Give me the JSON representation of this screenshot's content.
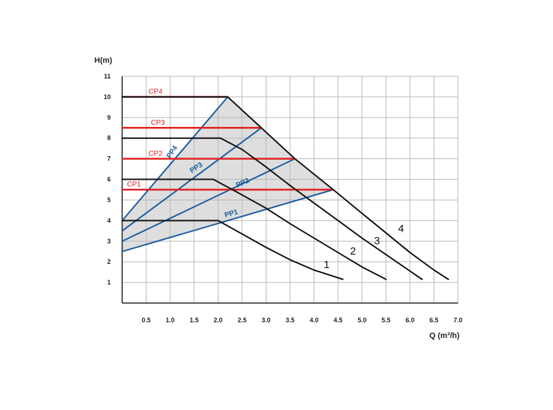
{
  "chart_data": {
    "type": "line",
    "ylabel": "H(m)",
    "xlabel": "Q (m³/h)",
    "xlim": [
      0,
      7.0
    ],
    "ylim": [
      0,
      11
    ],
    "grid": true,
    "x_ticks": [
      "0.5",
      "1.0",
      "1.5",
      "2.0",
      "2.5",
      "3.0",
      "3.5",
      "4.0",
      "4.5",
      "5.0",
      "5.5",
      "6.0",
      "6.5",
      "7.0"
    ],
    "y_ticks": [
      "1",
      "2",
      "3",
      "4",
      "5",
      "6",
      "7",
      "8",
      "9",
      "10",
      "11"
    ],
    "colors": {
      "grid": "#b8b8b8",
      "speed_curve": "#111111",
      "constant_pressure": "#e02020",
      "proportional_pressure": "#1a5c9e",
      "operating_area": "#dedede"
    },
    "operating_area": [
      {
        "x": 0,
        "y": 4.0
      },
      {
        "x": 2.2,
        "y": 10.0
      },
      {
        "x": 2.9,
        "y": 8.5
      },
      {
        "x": 3.6,
        "y": 7.0
      },
      {
        "x": 4.4,
        "y": 5.5
      },
      {
        "x": 2.0,
        "y": 3.9
      },
      {
        "x": 0,
        "y": 2.5
      }
    ],
    "speed_curves": [
      {
        "name": "1",
        "label_at": {
          "x": 4.2,
          "y": 1.7
        },
        "points": [
          {
            "x": 0,
            "y": 4.0
          },
          {
            "x": 2.0,
            "y": 4.0
          },
          {
            "x": 2.5,
            "y": 3.35
          },
          {
            "x": 3.0,
            "y": 2.7
          },
          {
            "x": 3.5,
            "y": 2.1
          },
          {
            "x": 4.0,
            "y": 1.6
          },
          {
            "x": 4.6,
            "y": 1.15
          }
        ]
      },
      {
        "name": "2",
        "label_at": {
          "x": 4.75,
          "y": 2.35
        },
        "points": [
          {
            "x": 0,
            "y": 6.0
          },
          {
            "x": 1.9,
            "y": 6.0
          },
          {
            "x": 2.3,
            "y": 5.5
          },
          {
            "x": 3.0,
            "y": 4.6
          },
          {
            "x": 3.5,
            "y": 3.85
          },
          {
            "x": 4.0,
            "y": 3.15
          },
          {
            "x": 4.5,
            "y": 2.45
          },
          {
            "x": 5.0,
            "y": 1.75
          },
          {
            "x": 5.5,
            "y": 1.15
          }
        ]
      },
      {
        "name": "3",
        "label_at": {
          "x": 5.25,
          "y": 2.85
        },
        "points": [
          {
            "x": 0,
            "y": 8.0
          },
          {
            "x": 2.05,
            "y": 8.0
          },
          {
            "x": 2.5,
            "y": 7.45
          },
          {
            "x": 3.0,
            "y": 6.6
          },
          {
            "x": 3.5,
            "y": 5.7
          },
          {
            "x": 4.0,
            "y": 4.85
          },
          {
            "x": 4.5,
            "y": 4.0
          },
          {
            "x": 5.0,
            "y": 3.15
          },
          {
            "x": 5.5,
            "y": 2.35
          },
          {
            "x": 6.0,
            "y": 1.55
          },
          {
            "x": 6.25,
            "y": 1.15
          }
        ]
      },
      {
        "name": "4",
        "label_at": {
          "x": 5.75,
          "y": 3.45
        },
        "points": [
          {
            "x": 0,
            "y": 10.0
          },
          {
            "x": 2.2,
            "y": 10.0
          },
          {
            "x": 2.9,
            "y": 8.5
          },
          {
            "x": 3.6,
            "y": 7.0
          },
          {
            "x": 4.4,
            "y": 5.5
          },
          {
            "x": 5.0,
            "y": 4.35
          },
          {
            "x": 5.5,
            "y": 3.4
          },
          {
            "x": 6.0,
            "y": 2.45
          },
          {
            "x": 6.5,
            "y": 1.6
          },
          {
            "x": 6.8,
            "y": 1.15
          }
        ]
      }
    ],
    "constant_pressure": [
      {
        "name": "CP1",
        "y": 5.5,
        "x0": 0,
        "x1": 4.4,
        "label_at": {
          "x": 0.1,
          "y": 5.65
        }
      },
      {
        "name": "CP2",
        "y": 7.0,
        "x0": 0,
        "x1": 3.6,
        "label_at": {
          "x": 0.55,
          "y": 7.15
        }
      },
      {
        "name": "CP3",
        "y": 8.5,
        "x0": 0,
        "x1": 2.9,
        "label_at": {
          "x": 0.6,
          "y": 8.65
        }
      },
      {
        "name": "CP4",
        "y": 10.0,
        "x0": 0,
        "x1": 2.2,
        "label_at": {
          "x": 0.55,
          "y": 10.15
        }
      }
    ],
    "proportional_pressure": [
      {
        "name": "PP1",
        "points": [
          {
            "x": 0,
            "y": 2.5
          },
          {
            "x": 4.4,
            "y": 5.5
          }
        ],
        "label_at": {
          "x": 2.15,
          "y": 4.15
        },
        "angle": -16
      },
      {
        "name": "PP2",
        "points": [
          {
            "x": 0,
            "y": 3.0
          },
          {
            "x": 3.6,
            "y": 7.0
          }
        ],
        "label_at": {
          "x": 2.4,
          "y": 5.6
        },
        "angle": -24
      },
      {
        "name": "PP3",
        "points": [
          {
            "x": 0,
            "y": 3.5
          },
          {
            "x": 2.9,
            "y": 8.5
          }
        ],
        "label_at": {
          "x": 1.45,
          "y": 6.3
        },
        "angle": -33
      },
      {
        "name": "PP4",
        "points": [
          {
            "x": 0,
            "y": 4.0
          },
          {
            "x": 2.2,
            "y": 10.0
          }
        ],
        "label_at": {
          "x": 1.0,
          "y": 7.0
        },
        "angle": -56
      }
    ]
  }
}
